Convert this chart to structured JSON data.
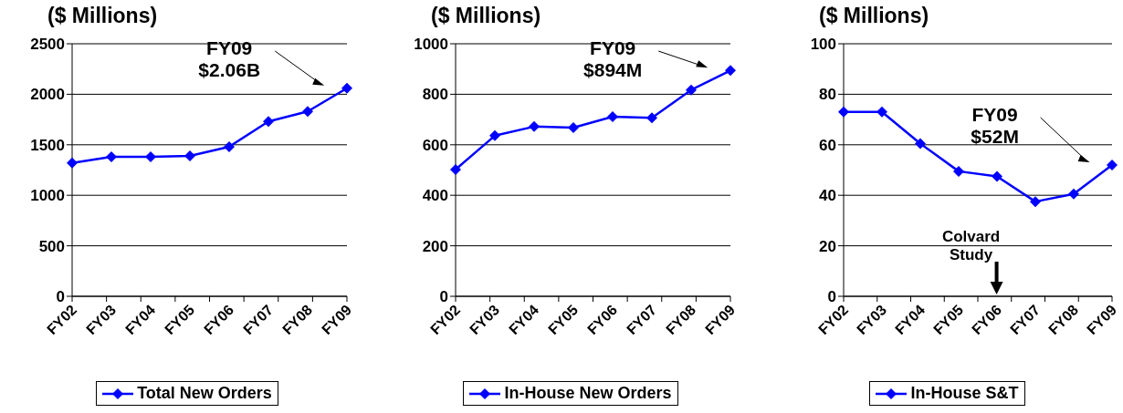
{
  "chart_data": [
    {
      "type": "line",
      "title": "($ Millions)",
      "categories": [
        "FY02",
        "FY03",
        "FY04",
        "FY05",
        "FY06",
        "FY07",
        "FY08",
        "FY09"
      ],
      "series": [
        {
          "name": "Total New Orders",
          "color": "#0000ff",
          "values": [
            1320,
            1380,
            1380,
            1390,
            1480,
            1730,
            1830,
            2060
          ]
        }
      ],
      "ylim": [
        0,
        2500
      ],
      "yticks": [
        0,
        500,
        1000,
        1500,
        2000,
        2500
      ],
      "grid": "y",
      "legend": "bottom",
      "marker": "diamond",
      "line_style": "solid",
      "annotations": [
        "FY09\n$2.06B"
      ]
    },
    {
      "type": "line",
      "title": "($ Millions)",
      "categories": [
        "FY02",
        "FY03",
        "FY04",
        "FY05",
        "FY06",
        "FY07",
        "FY08",
        "FY09"
      ],
      "series": [
        {
          "name": "In-House New Orders",
          "color": "#0000ff",
          "values": [
            502,
            636,
            672,
            668,
            711,
            707,
            817,
            894
          ]
        }
      ],
      "ylim": [
        0,
        1000
      ],
      "yticks": [
        0,
        200,
        400,
        600,
        800,
        1000
      ],
      "grid": "y",
      "legend": "bottom",
      "marker": "diamond",
      "line_style": "solid",
      "annotations": [
        "FY09\n$894M"
      ]
    },
    {
      "type": "line",
      "title": "($ Millions)",
      "categories": [
        "FY02",
        "FY03",
        "FY04",
        "FY05",
        "FY06",
        "FY07",
        "FY08",
        "FY09"
      ],
      "series": [
        {
          "name": "In-House S&T",
          "color": "#0000ff",
          "values": [
            73,
            73,
            60.5,
            49.5,
            47.5,
            37.5,
            40.5,
            52
          ]
        }
      ],
      "ylim": [
        0,
        100
      ],
      "yticks": [
        0,
        20,
        40,
        60,
        80,
        100
      ],
      "grid": "y",
      "legend": "bottom",
      "marker": "diamond",
      "line_style": "solid",
      "annotations": [
        "FY09\n$52M",
        "Colvard\nStudy"
      ]
    }
  ]
}
